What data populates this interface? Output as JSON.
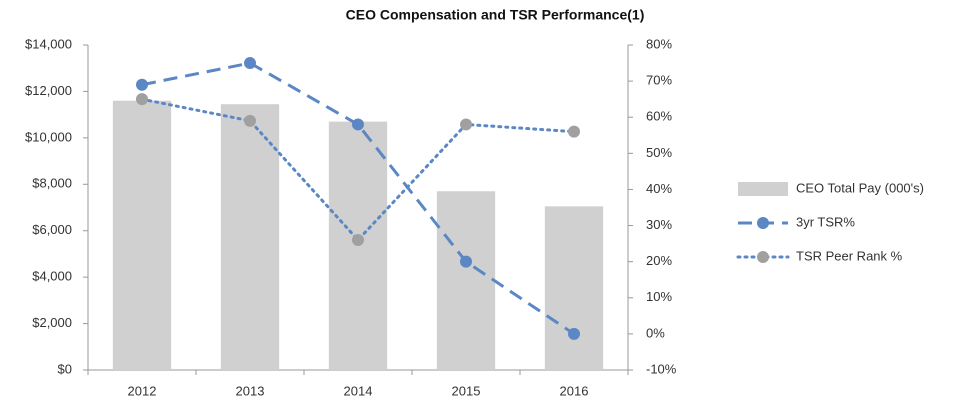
{
  "chart_data": {
    "type": "bar",
    "title": "CEO Compensation and TSR Performance(1)",
    "categories": [
      "2012",
      "2013",
      "2014",
      "2015",
      "2016"
    ],
    "series": [
      {
        "name": "CEO Total Pay (000's)",
        "type": "bar",
        "color": "#d0d0d0",
        "values": [
          11600,
          11450,
          10700,
          7700,
          7050
        ]
      },
      {
        "name": "3yr TSR%",
        "type": "line",
        "style": "dashed",
        "color": "#5b87c5",
        "marker_color": "#5b87c5",
        "axis": "y2",
        "values": [
          69,
          75,
          58,
          20,
          0
        ]
      },
      {
        "name": "TSR Peer Rank %",
        "type": "line",
        "style": "dotted",
        "color": "#5b87c5",
        "marker_color": "#a0a0a0",
        "axis": "y2",
        "values": [
          65,
          59,
          26,
          58,
          56
        ]
      }
    ],
    "ylim": [
      0,
      14000
    ],
    "yticks": [
      {
        "value": 0,
        "label": "$0"
      },
      {
        "value": 2000,
        "label": "$2,000"
      },
      {
        "value": 4000,
        "label": "$4,000"
      },
      {
        "value": 6000,
        "label": "$6,000"
      },
      {
        "value": 8000,
        "label": "$8,000"
      },
      {
        "value": 10000,
        "label": "$10,000"
      },
      {
        "value": 12000,
        "label": "$12,000"
      },
      {
        "value": 14000,
        "label": "$14,000"
      }
    ],
    "y2lim": [
      -10,
      80
    ],
    "y2ticks": [
      {
        "value": -10,
        "label": "-10%"
      },
      {
        "value": 0,
        "label": "0%"
      },
      {
        "value": 10,
        "label": "10%"
      },
      {
        "value": 20,
        "label": "20%"
      },
      {
        "value": 30,
        "label": "30%"
      },
      {
        "value": 40,
        "label": "40%"
      },
      {
        "value": 50,
        "label": "50%"
      },
      {
        "value": 60,
        "label": "60%"
      },
      {
        "value": 70,
        "label": "70%"
      },
      {
        "value": 80,
        "label": "80%"
      }
    ],
    "grid": false,
    "legend": "right"
  }
}
